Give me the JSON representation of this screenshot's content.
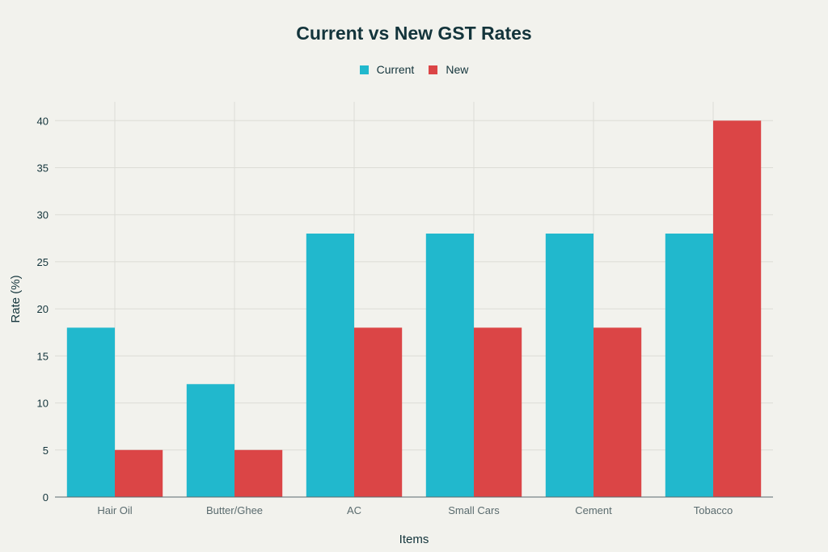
{
  "chart_data": {
    "type": "bar",
    "title": "Current vs New GST Rates",
    "xlabel": "Items",
    "ylabel": "Rate (%)",
    "categories": [
      "Hair Oil",
      "Butter/Ghee",
      "AC",
      "Small Cars",
      "Cement",
      "Tobacco"
    ],
    "series": [
      {
        "name": "Current",
        "color": "#21b8cd",
        "values": [
          18,
          12,
          28,
          28,
          28,
          28
        ]
      },
      {
        "name": "New",
        "color": "#db4546",
        "values": [
          5,
          5,
          18,
          18,
          18,
          40
        ]
      }
    ],
    "ylim": [
      0,
      42
    ],
    "yticks": [
      "0",
      "5",
      "10",
      "15",
      "20",
      "25",
      "30",
      "35",
      "40"
    ],
    "grid": true,
    "legend_position": "top-center"
  }
}
